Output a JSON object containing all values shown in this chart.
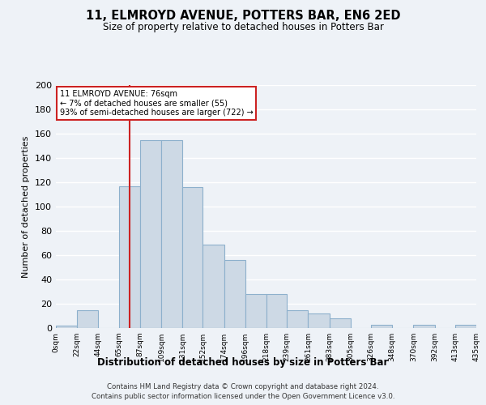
{
  "title": "11, ELMROYD AVENUE, POTTERS BAR, EN6 2ED",
  "subtitle": "Size of property relative to detached houses in Potters Bar",
  "xlabel": "Distribution of detached houses by size in Potters Bar",
  "ylabel": "Number of detached properties",
  "bar_color": "#cdd9e5",
  "bar_edge_color": "#8db0cc",
  "background_color": "#eef2f7",
  "grid_color": "#ffffff",
  "annotation_box_color": "#ffffff",
  "annotation_box_edge": "#cc2222",
  "property_line_color": "#cc2222",
  "bin_edges": [
    0,
    22,
    44,
    65,
    87,
    109,
    131,
    152,
    174,
    196,
    218,
    239,
    261,
    283,
    305,
    326,
    348,
    370,
    392,
    413,
    435
  ],
  "bin_labels": [
    "0sqm",
    "22sqm",
    "44sqm",
    "65sqm",
    "87sqm",
    "109sqm",
    "131sqm",
    "152sqm",
    "174sqm",
    "196sqm",
    "218sqm",
    "239sqm",
    "261sqm",
    "283sqm",
    "305sqm",
    "326sqm",
    "348sqm",
    "370sqm",
    "392sqm",
    "413sqm",
    "435sqm"
  ],
  "counts": [
    2,
    15,
    0,
    117,
    155,
    155,
    116,
    69,
    56,
    28,
    28,
    15,
    12,
    8,
    0,
    3,
    0,
    3,
    0,
    3
  ],
  "ylim": [
    0,
    200
  ],
  "yticks": [
    0,
    20,
    40,
    60,
    80,
    100,
    120,
    140,
    160,
    180,
    200
  ],
  "property_value": 76,
  "annotation_title": "11 ELMROYD AVENUE: 76sqm",
  "annotation_line1": "← 7% of detached houses are smaller (55)",
  "annotation_line2": "93% of semi-detached houses are larger (722) →",
  "footer_line1": "Contains HM Land Registry data © Crown copyright and database right 2024.",
  "footer_line2": "Contains public sector information licensed under the Open Government Licence v3.0."
}
